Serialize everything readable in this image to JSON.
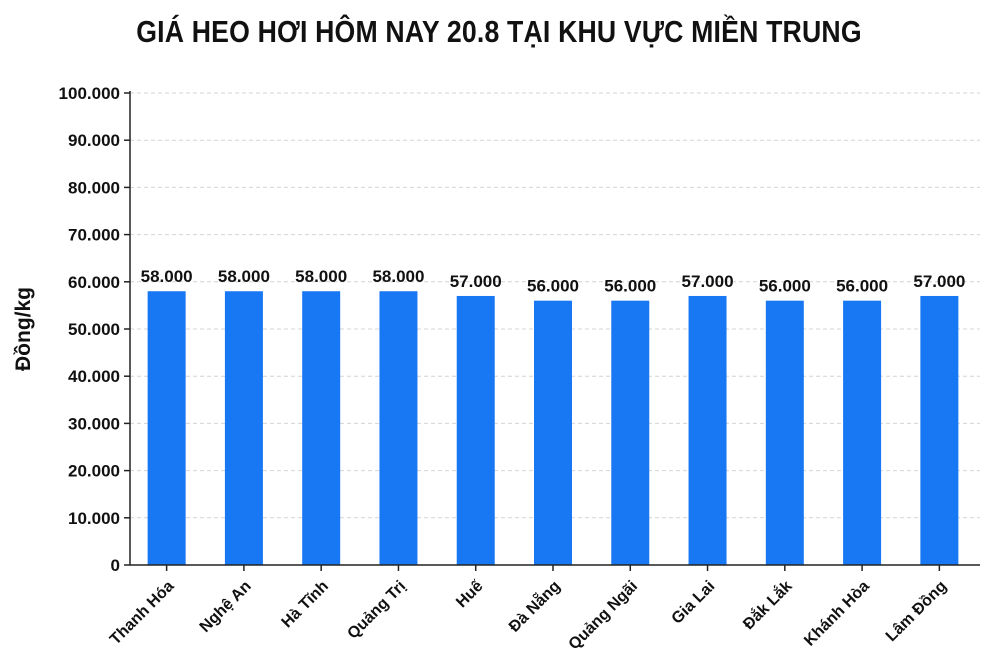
{
  "chart_data": {
    "type": "bar",
    "title": "GIÁ HEO HƠI HÔM NAY 20.8 TẠI KHU VỰC MIỀN TRUNG",
    "xlabel": "",
    "ylabel": "Đồng/kg",
    "categories": [
      "Thanh Hóa",
      "Nghệ An",
      "Hà Tĩnh",
      "Quảng Trị",
      "Huế",
      "Đà Nẵng",
      "Quảng Ngãi",
      "Gia Lai",
      "Đắk Lắk",
      "Khánh Hòa",
      "Lâm Đồng"
    ],
    "values": [
      58000,
      58000,
      58000,
      58000,
      57000,
      56000,
      56000,
      57000,
      56000,
      56000,
      57000
    ],
    "value_labels": [
      "58.000",
      "58.000",
      "58.000",
      "58.000",
      "57.000",
      "56.000",
      "56.000",
      "57.000",
      "56.000",
      "56.000",
      "57.000"
    ],
    "ylim": [
      0,
      100000
    ],
    "yticks": [
      0,
      10000,
      20000,
      30000,
      40000,
      50000,
      60000,
      70000,
      80000,
      90000,
      100000
    ],
    "ytick_labels": [
      "0",
      "10.000",
      "20.000",
      "30.000",
      "40.000",
      "50.000",
      "60.000",
      "70.000",
      "80.000",
      "90.000",
      "100.000"
    ],
    "grid": true,
    "bar_color": "#1877f2"
  }
}
